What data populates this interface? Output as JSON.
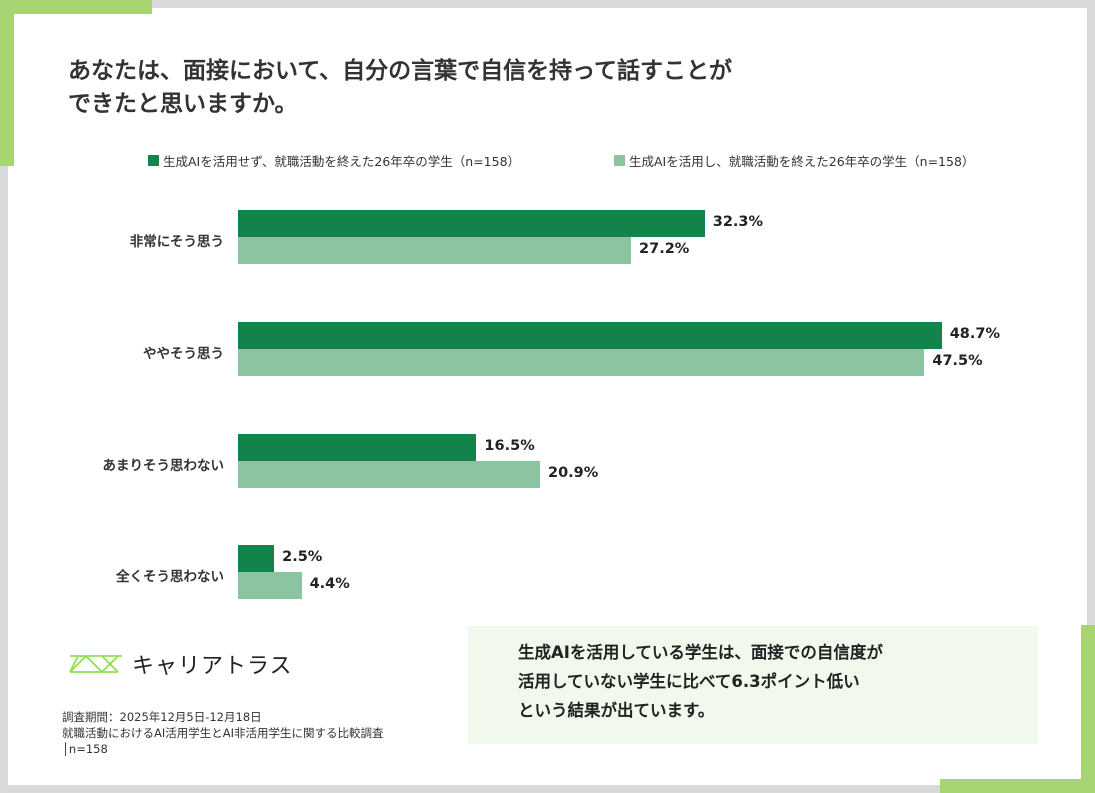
{
  "title_lines": [
    "あなたは、面接において、自分の言葉で自信を持って話すことが",
    "できたと思いますか。"
  ],
  "colors": {
    "accent": "#a6d571",
    "series_dark": "#12834a",
    "series_light": "#8bc4a0",
    "box_bg": "#f1f8ec"
  },
  "chart_data": {
    "type": "bar",
    "orientation": "horizontal",
    "legend_position": "top",
    "grid": false,
    "categories": [
      "非常にそう思う",
      "ややそう思う",
      "あまりそう思わない",
      "全くそう思わない"
    ],
    "series": [
      {
        "name": "生成AIを活用せず、就職活動を終えた26年卒の学生（n=158）",
        "color": "#12834a",
        "values": [
          32.3,
          48.7,
          16.5,
          2.5
        ],
        "labels": [
          "32.3%",
          "48.7%",
          "16.5%",
          "2.5%"
        ]
      },
      {
        "name": "生成AIを活用し、就職活動を終えた26年卒の学生（n=158）",
        "color": "#8bc4a0",
        "values": [
          27.2,
          47.5,
          20.9,
          4.4
        ],
        "labels": [
          "27.2%",
          "47.5%",
          "20.9%",
          "4.4%"
        ]
      }
    ]
  },
  "logo_text": "キャリアトラス",
  "notes": [
    "調査期間：2025年12月5日-12月18日",
    "就職活動におけるAI活用学生とAI非活用学生に関する比較調査",
    "│n=158"
  ],
  "summary_lines": [
    "生成AIを活用している学生は、面接での自信度が",
    "活用していない学生に比べて6.3ポイント低い",
    "という結果が出ています。"
  ]
}
